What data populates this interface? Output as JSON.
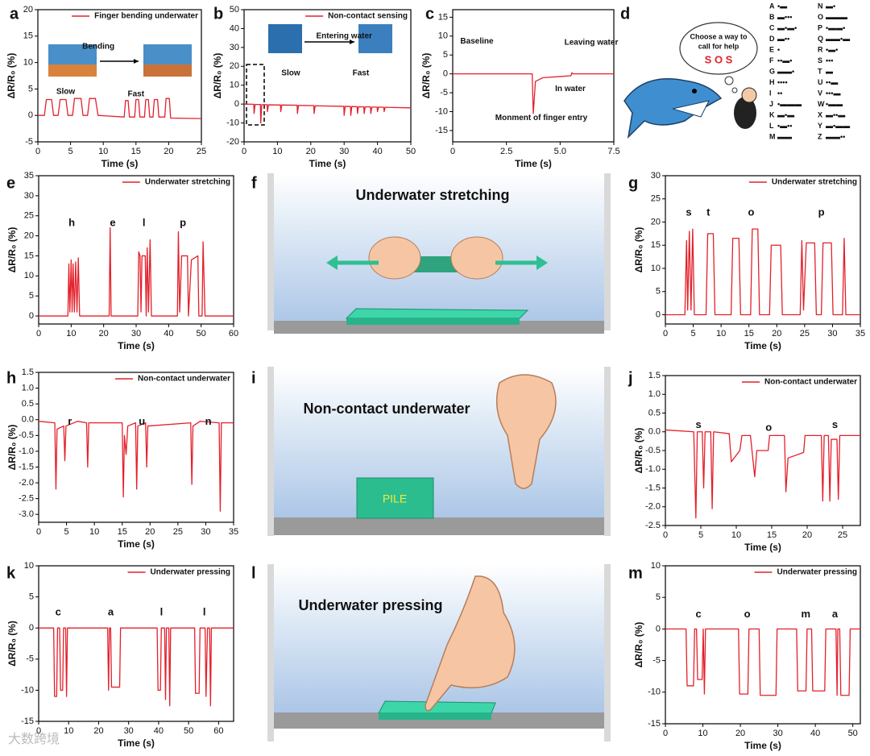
{
  "chart_data": [
    {
      "type": "line",
      "panel": "a",
      "x_label": "Time (s)",
      "y_label": "ΔR/R₀ (%)",
      "xlim": [
        0,
        25
      ],
      "xticks": [
        0,
        5,
        10,
        15,
        20,
        25
      ],
      "ylim": [
        -5,
        20
      ],
      "yticks": [
        -5,
        0,
        5,
        10,
        15,
        20
      ],
      "legend": "upper right",
      "annotations": [
        "Bending",
        "Slow",
        "Fast"
      ],
      "x": [
        0,
        1,
        1.3,
        2.1,
        2.4,
        3.1,
        3.4,
        4.3,
        4.6,
        5.3,
        5.6,
        6.6,
        6.9,
        7.6,
        7.9,
        8.8,
        9.2,
        13.2,
        13.4,
        13.8,
        14,
        14.8,
        15,
        15.4,
        15.6,
        16.3,
        16.5,
        16.9,
        17.1,
        17.6,
        17.8,
        18.3,
        18.5,
        19.4,
        19.6,
        20.1,
        20.3,
        25
      ],
      "series": [
        {
          "name": "Finger bending underwater",
          "color": "#e3202b",
          "values": [
            0,
            0,
            3,
            3,
            0,
            0,
            3,
            3,
            0,
            0,
            3.2,
            3.2,
            0,
            0,
            3.2,
            3.2,
            0,
            -0.3,
            2.8,
            2.8,
            -0.3,
            -0.3,
            3,
            3,
            -0.3,
            -0.3,
            3,
            3,
            -0.3,
            -0.3,
            3,
            3,
            -0.3,
            -0.3,
            3.2,
            3.2,
            -0.5,
            -0.6
          ]
        }
      ]
    },
    {
      "type": "line",
      "panel": "b",
      "x_label": "Time (s)",
      "y_label": "ΔR/R₀ (%)",
      "xlim": [
        0,
        50
      ],
      "xticks": [
        0,
        10,
        20,
        30,
        40,
        50
      ],
      "ylim": [
        -20,
        50
      ],
      "yticks": [
        -20,
        -10,
        0,
        10,
        20,
        30,
        40,
        50
      ],
      "legend": "upper right",
      "annotations": [
        "Entering water",
        "Slow",
        "Fast"
      ],
      "x": [
        0,
        2.9,
        3,
        3.3,
        4.9,
        5,
        5.3,
        6.9,
        7,
        7.3,
        10.9,
        11,
        11.3,
        15.9,
        16,
        16.3,
        20.9,
        21,
        21.3,
        29.9,
        30,
        30.3,
        31.9,
        32,
        32.3,
        33.9,
        34,
        34.3,
        35.9,
        36,
        36.3,
        37.9,
        38,
        38.3,
        39.9,
        40,
        40.3,
        41.9,
        42,
        42.3,
        50
      ],
      "series": [
        {
          "name": "Non-contact sensing",
          "color": "#e3202b",
          "values": [
            0,
            -0.1,
            -5,
            -0.2,
            -0.2,
            -10,
            -0.3,
            -0.3,
            -4,
            -0.4,
            -0.5,
            -4,
            -0.5,
            -0.6,
            -5,
            -0.7,
            -0.8,
            -5,
            -0.9,
            -1.2,
            -6,
            -1.2,
            -1.3,
            -6,
            -1.3,
            -1.4,
            -5,
            -1.4,
            -1.5,
            -5,
            -1.5,
            -1.5,
            -5,
            -1.6,
            -1.6,
            -4,
            -1.6,
            -1.7,
            -4,
            -1.7,
            -2
          ]
        }
      ]
    },
    {
      "type": "line",
      "panel": "c",
      "x_label": "Time (s)",
      "y_label": "ΔR/R₀ (%)",
      "xlim": [
        0,
        7.5
      ],
      "xticks": [
        0,
        2.5,
        {
          "value": 5,
          "label": "5.0"
        },
        7.5
      ],
      "ylim": [
        -18,
        17
      ],
      "yticks": [
        -15,
        -10,
        -5,
        0,
        5,
        10,
        15
      ],
      "annotations": [
        "Baseline",
        "Leaving water",
        "In water",
        "Monment of finger entry"
      ],
      "x": [
        0,
        3.7,
        3.75,
        3.85,
        4.2,
        5,
        5.5,
        5.55,
        5.6,
        7.5
      ],
      "series": [
        {
          "color": "#e3202b",
          "values": [
            0,
            0,
            -10.5,
            -2,
            -1,
            -0.7,
            -0.5,
            0.3,
            0,
            0
          ]
        }
      ]
    },
    {
      "type": "line",
      "panel": "e",
      "x_label": "Time (s)",
      "y_label": "ΔR/R₀ (%)",
      "xlim": [
        0,
        60
      ],
      "xticks": [
        0,
        10,
        20,
        30,
        40,
        50,
        60
      ],
      "ylim": [
        -2,
        35
      ],
      "yticks": [
        0,
        5,
        10,
        15,
        20,
        25,
        30,
        35
      ],
      "legend": "upper right",
      "annotations": [
        "h",
        "e",
        "l",
        "p"
      ],
      "x": [
        0,
        9,
        9.3,
        9.6,
        10,
        10.3,
        10.6,
        11,
        11.4,
        11.8,
        12.2,
        12.6,
        21.7,
        22,
        22.3,
        30.5,
        30.8,
        31.2,
        31.5,
        31.8,
        32.8,
        33.1,
        33.4,
        33.8,
        34.3,
        34.7,
        42.7,
        43,
        43.4,
        44,
        45.8,
        46.1,
        47,
        49,
        49.3,
        50.3,
        50.6,
        51.2,
        60
      ],
      "series": [
        {
          "name": "Underwater stretching",
          "color": "#e3202b",
          "values": [
            0,
            0,
            13,
            1,
            14,
            1,
            13,
            1,
            13.5,
            1,
            14.5,
            0,
            0,
            22,
            0,
            0,
            16,
            15,
            1,
            15,
            15,
            0,
            17,
            1,
            19,
            0,
            0,
            21,
            1,
            15,
            15,
            0,
            14,
            15,
            0,
            0,
            18.5,
            0,
            0
          ]
        }
      ]
    },
    {
      "type": "line",
      "panel": "g",
      "x_label": "Time (s)",
      "y_label": "ΔR/R₀ (%)",
      "xlim": [
        0,
        35
      ],
      "xticks": [
        0,
        5,
        10,
        15,
        20,
        25,
        30,
        35
      ],
      "ylim": [
        -2,
        30
      ],
      "yticks": [
        0,
        5,
        10,
        15,
        20,
        25,
        30
      ],
      "legend": "upper right",
      "annotations": [
        "s",
        "t",
        "o",
        "p"
      ],
      "x": [
        0,
        3.5,
        3.8,
        4,
        4.3,
        4.6,
        4.9,
        5.2,
        7.3,
        7.6,
        8.6,
        8.9,
        11.8,
        12.1,
        13.2,
        13.5,
        15.3,
        15.6,
        16.6,
        16.9,
        18.7,
        19,
        20.7,
        21,
        24.2,
        24.5,
        24.8,
        25.3,
        26.8,
        27.1,
        28,
        28.3,
        29.8,
        30.1,
        31.8,
        32.1,
        32.4,
        35
      ],
      "series": [
        {
          "name": "Underwater stretching",
          "color": "#e3202b",
          "values": [
            0,
            0,
            16,
            1,
            18,
            1,
            18.5,
            0,
            0,
            17.5,
            17.5,
            0,
            0,
            16.5,
            16.5,
            0,
            0,
            18.5,
            18.5,
            0,
            0,
            15,
            15,
            0,
            0,
            16,
            1,
            15.5,
            15.5,
            0,
            0,
            15.5,
            15.5,
            0,
            0,
            16.5,
            0,
            0
          ]
        }
      ]
    },
    {
      "type": "line",
      "panel": "h",
      "x_label": "Time (s)",
      "y_label": "ΔR/R₀ (%)",
      "xlim": [
        0,
        35
      ],
      "xticks": [
        0,
        5,
        10,
        15,
        20,
        25,
        30,
        35
      ],
      "ylim": [
        -3.25,
        1.5
      ],
      "yticks": [
        1.5,
        {
          "value": 1,
          "label": "1.0"
        },
        0.5,
        {
          "value": 0,
          "label": "0.0"
        },
        -0.5,
        {
          "value": -1,
          "label": "-1.0"
        },
        -1.5,
        {
          "value": -2,
          "label": "-2.0"
        },
        -2.5,
        {
          "value": -3,
          "label": "-3.0"
        }
      ],
      "legend": "upper right",
      "annotations": [
        "r",
        "u",
        "n"
      ],
      "x": [
        0,
        2.9,
        3.1,
        3.3,
        4.5,
        4.7,
        4.9,
        7,
        8.6,
        8.8,
        9,
        15,
        15.2,
        15.4,
        15.7,
        16,
        17.4,
        17.6,
        17.8,
        19.2,
        19.4,
        19.6,
        27.3,
        27.5,
        27.7,
        29,
        32.4,
        32.6,
        32.8,
        35
      ],
      "series": [
        {
          "name": "Non-contact underwater",
          "color": "#e3202b",
          "values": [
            -0.05,
            -0.1,
            -2.2,
            -0.3,
            -0.2,
            -1.3,
            -0.2,
            -0.05,
            -0.1,
            -1.5,
            -0.1,
            -0.1,
            -2.45,
            -0.5,
            -1.1,
            -0.2,
            -0.1,
            -2.2,
            -0.2,
            -0.1,
            -1.5,
            -0.2,
            -0.1,
            -2.05,
            -0.2,
            -0.05,
            -0.1,
            -2.9,
            -0.1,
            -0.1
          ]
        }
      ]
    },
    {
      "type": "line",
      "panel": "j",
      "x_label": "Time (s)",
      "y_label": "ΔR/R₀ (%)",
      "xlim": [
        0,
        27.5
      ],
      "xticks": [
        0,
        5,
        10,
        15,
        20,
        25
      ],
      "ylim": [
        -2.5,
        1.5
      ],
      "yticks": [
        1.5,
        {
          "value": 1,
          "label": "1.0"
        },
        0.5,
        {
          "value": 0,
          "label": "0.0"
        },
        -0.5,
        {
          "value": -1,
          "label": "-1.0"
        },
        -1.5,
        {
          "value": -2,
          "label": "-2.0"
        },
        -2.5
      ],
      "legend": "upper right",
      "annotations": [
        "s",
        "o",
        "s"
      ],
      "x": [
        0,
        4,
        4.3,
        4.5,
        5.2,
        5.4,
        5.6,
        6.4,
        6.6,
        6.8,
        9,
        9.3,
        10.5,
        10.8,
        12,
        12.6,
        12.9,
        14.5,
        14.7,
        16.8,
        17,
        17.3,
        19.5,
        19.7,
        22,
        22.2,
        22.4,
        23,
        23.2,
        23.4,
        24.2,
        24.4,
        24.6,
        27.5
      ],
      "series": [
        {
          "name": "Non-contact underwater",
          "color": "#e3202b",
          "values": [
            0.05,
            0,
            -2.3,
            0,
            0,
            -1.5,
            0,
            0,
            -2.05,
            0,
            -0.05,
            -0.8,
            -0.5,
            -0.1,
            -0.1,
            -1.2,
            -0.5,
            -0.5,
            -0.1,
            -0.1,
            -1.6,
            -0.7,
            -0.55,
            -0.1,
            -0.1,
            -1.85,
            -0.1,
            -0.1,
            -1.85,
            -0.2,
            -0.2,
            -1.8,
            -0.1,
            -0.1
          ]
        }
      ]
    },
    {
      "type": "line",
      "panel": "k",
      "x_label": "Time (s)",
      "y_label": "ΔR/R₀ (%)",
      "xlim": [
        0,
        65
      ],
      "xticks": [
        0,
        10,
        20,
        30,
        40,
        50,
        60
      ],
      "ylim": [
        -15,
        10
      ],
      "yticks": [
        -15,
        -10,
        -5,
        0,
        5,
        10
      ],
      "legend": "upper right",
      "annotations": [
        "c",
        "a",
        "l",
        "l"
      ],
      "x": [
        0,
        5,
        5.3,
        6,
        6.3,
        7,
        7.3,
        8,
        8.3,
        9,
        9.3,
        9.6,
        23,
        23.3,
        23.6,
        24,
        24.3,
        27,
        27.3,
        39.5,
        39.8,
        40.6,
        40.9,
        42,
        42.3,
        42.6,
        43.4,
        43.7,
        44,
        52,
        52.3,
        53.5,
        53.8,
        55.5,
        55.8,
        56.3,
        57,
        57.3,
        57.6,
        65
      ],
      "series": [
        {
          "name": "Underwater pressing",
          "color": "#e3202b",
          "values": [
            0,
            0,
            -11,
            -11,
            0,
            0,
            -10,
            -10,
            0,
            0,
            -11,
            0,
            0,
            -10,
            0,
            0,
            -9.5,
            -9.5,
            0,
            0,
            -10,
            -10,
            0,
            0,
            -11.5,
            0,
            0,
            -12.5,
            0,
            0,
            -10.5,
            -10.5,
            0,
            0,
            -11,
            0,
            0,
            -12.5,
            0,
            0
          ]
        }
      ]
    },
    {
      "type": "line",
      "panel": "m",
      "x_label": "Time (s)",
      "y_label": "ΔR/R₀ (%)",
      "xlim": [
        0,
        52
      ],
      "xticks": [
        0,
        10,
        20,
        30,
        40,
        50
      ],
      "ylim": [
        -15,
        10
      ],
      "yticks": [
        -15,
        -10,
        -5,
        0,
        5,
        10
      ],
      "legend": "upper right",
      "annotations": [
        "c",
        "o",
        "m",
        "a"
      ],
      "x": [
        0,
        5.5,
        5.8,
        7.5,
        7.8,
        8.3,
        8.6,
        9.8,
        10.1,
        10.4,
        10.7,
        19.5,
        19.8,
        22,
        22.3,
        25,
        25.3,
        29.5,
        29.8,
        35,
        35.3,
        37.5,
        37.8,
        39,
        39.3,
        42.5,
        42.8,
        45.5,
        45.8,
        46,
        46.5,
        46.8,
        49,
        49.3,
        52
      ],
      "series": [
        {
          "name": "Underwater pressing",
          "color": "#e3202b",
          "values": [
            0,
            0,
            -9,
            -9,
            0,
            0,
            -8,
            -8,
            0,
            -10.3,
            0,
            0,
            -10.3,
            -10.3,
            0,
            0,
            -10.5,
            -10.5,
            0,
            0,
            -9.8,
            -9.8,
            0,
            0,
            -9.8,
            -9.8,
            0,
            0,
            -10.5,
            0,
            0,
            -10.5,
            -10.5,
            0,
            0
          ]
        }
      ]
    }
  ],
  "illustrations": {
    "d": {
      "panel": "d",
      "bubble_line1": "Choose a way to",
      "bubble_line2": "call for help",
      "sos": "S O S",
      "morse": [
        {
          "letter": "A",
          "code": "•▬"
        },
        {
          "letter": "B",
          "code": "▬•••"
        },
        {
          "letter": "C",
          "code": "▬•▬•"
        },
        {
          "letter": "D",
          "code": "▬••"
        },
        {
          "letter": "E",
          "code": "•"
        },
        {
          "letter": "F",
          "code": "••▬•"
        },
        {
          "letter": "G",
          "code": "▬▬•"
        },
        {
          "letter": "H",
          "code": "••••"
        },
        {
          "letter": "I",
          "code": "••"
        },
        {
          "letter": "J",
          "code": "•▬▬▬"
        },
        {
          "letter": "K",
          "code": "▬•▬"
        },
        {
          "letter": "L",
          "code": "•▬••"
        },
        {
          "letter": "M",
          "code": "▬▬"
        },
        {
          "letter": "N",
          "code": "▬•"
        },
        {
          "letter": "O",
          "code": "▬▬▬"
        },
        {
          "letter": "P",
          "code": "•▬▬•"
        },
        {
          "letter": "Q",
          "code": "▬▬•▬"
        },
        {
          "letter": "R",
          "code": "•▬•"
        },
        {
          "letter": "S",
          "code": "•••"
        },
        {
          "letter": "T",
          "code": "▬"
        },
        {
          "letter": "U",
          "code": "••▬"
        },
        {
          "letter": "V",
          "code": "•••▬"
        },
        {
          "letter": "W",
          "code": "•▬▬"
        },
        {
          "letter": "X",
          "code": "▬••▬"
        },
        {
          "letter": "Y",
          "code": "▬•▬▬"
        },
        {
          "letter": "Z",
          "code": "▬▬••"
        }
      ]
    },
    "f": {
      "panel": "f",
      "title": "Underwater stretching"
    },
    "i": {
      "panel": "i",
      "title": "Non-contact underwater",
      "block": "PILE"
    },
    "l": {
      "panel": "l",
      "title": "Underwater pressing"
    }
  },
  "watermark": "大数跨境"
}
